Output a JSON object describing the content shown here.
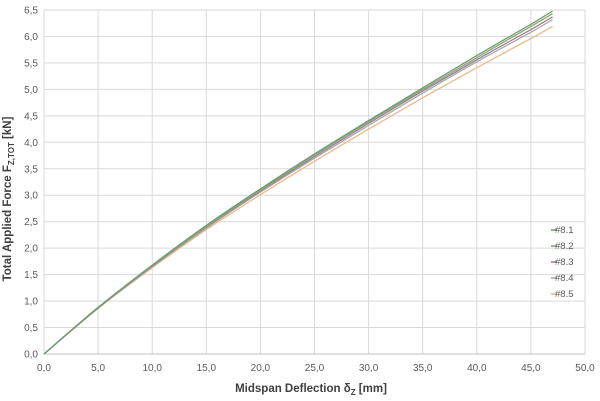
{
  "chart_data": {
    "type": "line",
    "xlabel": "Midspan Deflection δ",
    "xlabel_sub": "Z",
    "xlabel_unit": " [mm]",
    "ylabel": "Total Applied Force F",
    "ylabel_sub": "Z,TOT",
    "ylabel_unit": " [kN]",
    "xlim": [
      0,
      50
    ],
    "ylim": [
      0,
      6.5
    ],
    "x_ticks": [
      "0,0",
      "5,0",
      "10,0",
      "15,0",
      "20,0",
      "25,0",
      "30,0",
      "35,0",
      "40,0",
      "45,0",
      "50,0"
    ],
    "y_ticks": [
      "0,0",
      "0,5",
      "1,0",
      "1,5",
      "2,0",
      "2,5",
      "3,0",
      "3,5",
      "4,0",
      "4,5",
      "5,0",
      "5,5",
      "6,0",
      "6,5"
    ],
    "grid": true,
    "legend_position": "right",
    "series": [
      {
        "name": "#8.1",
        "color": "#6e9e76",
        "x": [
          0,
          5,
          10,
          15,
          20,
          25,
          30,
          35,
          40,
          45,
          47
        ],
        "y": [
          0,
          0.88,
          1.68,
          2.43,
          3.12,
          3.78,
          4.41,
          5.03,
          5.64,
          6.23,
          6.48
        ]
      },
      {
        "name": "#8.2",
        "color": "#8aa66b",
        "x": [
          0,
          5,
          10,
          15,
          20,
          25,
          30,
          35,
          40,
          45,
          47
        ],
        "y": [
          0,
          0.88,
          1.67,
          2.41,
          3.1,
          3.76,
          4.39,
          5.0,
          5.6,
          6.19,
          6.43
        ]
      },
      {
        "name": "#8.3",
        "color": "#9e7e9a",
        "x": [
          0,
          5,
          10,
          15,
          20,
          25,
          30,
          35,
          40,
          45,
          47
        ],
        "y": [
          0,
          0.87,
          1.66,
          2.4,
          3.08,
          3.73,
          4.36,
          4.97,
          5.56,
          6.13,
          6.37
        ]
      },
      {
        "name": "#8.4",
        "color": "#a8a8a8",
        "x": [
          0,
          5,
          10,
          15,
          20,
          25,
          30,
          35,
          40,
          45,
          47
        ],
        "y": [
          0,
          0.87,
          1.65,
          2.38,
          3.06,
          3.7,
          4.32,
          4.93,
          5.52,
          6.08,
          6.32
        ]
      },
      {
        "name": "#8.5",
        "color": "#e8b98a",
        "x": [
          0,
          5,
          10,
          15,
          20,
          25,
          30,
          35,
          40,
          45,
          47
        ],
        "y": [
          0,
          0.86,
          1.63,
          2.35,
          3.01,
          3.64,
          4.25,
          4.84,
          5.41,
          5.96,
          6.19
        ]
      }
    ]
  }
}
